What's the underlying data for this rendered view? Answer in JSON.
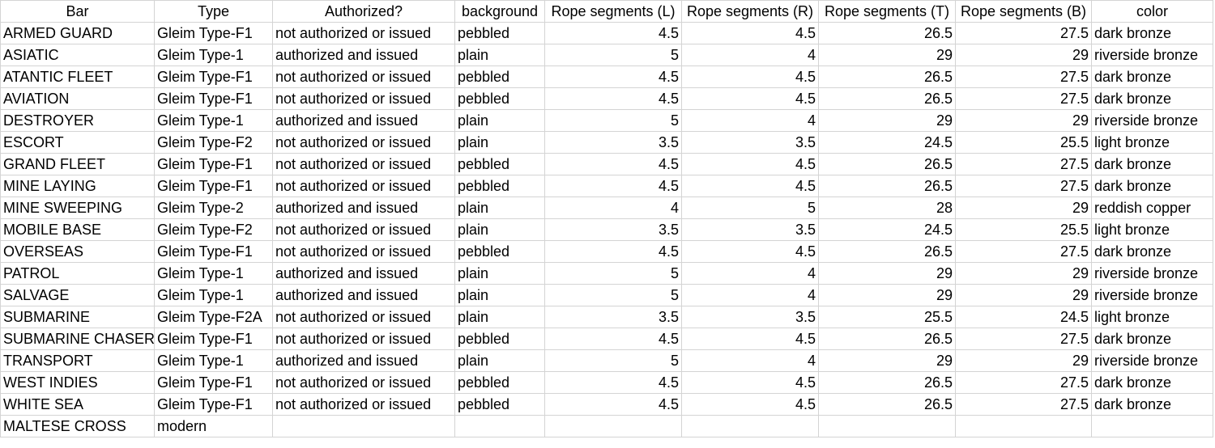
{
  "columns": [
    "Bar",
    "Type",
    "Authorized?",
    "background",
    "Rope segments (L)",
    "Rope segments (R)",
    "Rope segments (T)",
    "Rope segments (B)",
    "color"
  ],
  "rows": [
    [
      "ARMED GUARD",
      "Gleim Type-F1",
      "not authorized or issued",
      "pebbled",
      "4.5",
      "4.5",
      "26.5",
      "27.5",
      "dark bronze"
    ],
    [
      "ASIATIC",
      "Gleim Type-1",
      "authorized and issued",
      "plain",
      "5",
      "4",
      "29",
      "29",
      "riverside bronze"
    ],
    [
      "ATANTIC FLEET",
      "Gleim Type-F1",
      "not authorized or issued",
      "pebbled",
      "4.5",
      "4.5",
      "26.5",
      "27.5",
      "dark bronze"
    ],
    [
      "AVIATION",
      "Gleim Type-F1",
      "not authorized or issued",
      "pebbled",
      "4.5",
      "4.5",
      "26.5",
      "27.5",
      "dark bronze"
    ],
    [
      "DESTROYER",
      "Gleim Type-1",
      "authorized and issued",
      "plain",
      "5",
      "4",
      "29",
      "29",
      "riverside bronze"
    ],
    [
      "ESCORT",
      "Gleim Type-F2",
      "not authorized or issued",
      "plain",
      "3.5",
      "3.5",
      "24.5",
      "25.5",
      "light bronze"
    ],
    [
      "GRAND FLEET",
      "Gleim Type-F1",
      "not authorized or issued",
      "pebbled",
      "4.5",
      "4.5",
      "26.5",
      "27.5",
      "dark bronze"
    ],
    [
      "MINE LAYING",
      "Gleim Type-F1",
      "not authorized or issued",
      "pebbled",
      "4.5",
      "4.5",
      "26.5",
      "27.5",
      "dark bronze"
    ],
    [
      "MINE SWEEPING",
      "Gleim Type-2",
      "authorized and issued",
      "plain",
      "4",
      "5",
      "28",
      "29",
      "reddish copper"
    ],
    [
      "MOBILE BASE",
      "Gleim Type-F2",
      "not authorized or issued",
      "plain",
      "3.5",
      "3.5",
      "24.5",
      "25.5",
      "light bronze"
    ],
    [
      "OVERSEAS",
      "Gleim Type-F1",
      "not authorized or issued",
      "pebbled",
      "4.5",
      "4.5",
      "26.5",
      "27.5",
      "dark bronze"
    ],
    [
      "PATROL",
      "Gleim Type-1",
      "authorized and issued",
      "plain",
      "5",
      "4",
      "29",
      "29",
      "riverside bronze"
    ],
    [
      "SALVAGE",
      "Gleim Type-1",
      "authorized and issued",
      "plain",
      "5",
      "4",
      "29",
      "29",
      "riverside bronze"
    ],
    [
      "SUBMARINE",
      "Gleim Type-F2A",
      "not authorized or issued",
      "plain",
      "3.5",
      "3.5",
      "25.5",
      "24.5",
      "light bronze"
    ],
    [
      "SUBMARINE CHASER",
      "Gleim Type-F1",
      "not authorized or issued",
      "pebbled",
      "4.5",
      "4.5",
      "26.5",
      "27.5",
      "dark bronze"
    ],
    [
      "TRANSPORT",
      "Gleim Type-1",
      "authorized and issued",
      "plain",
      "5",
      "4",
      "29",
      "29",
      "riverside bronze"
    ],
    [
      "WEST INDIES",
      "Gleim Type-F1",
      "not authorized or issued",
      "pebbled",
      "4.5",
      "4.5",
      "26.5",
      "27.5",
      "dark bronze"
    ],
    [
      "WHITE SEA",
      "Gleim Type-F1",
      "not authorized or issued",
      "pebbled",
      "4.5",
      "4.5",
      "26.5",
      "27.5",
      "dark bronze"
    ],
    [
      "MALTESE CROSS",
      "modern",
      "",
      "",
      "",
      "",
      "",
      "",
      ""
    ]
  ]
}
